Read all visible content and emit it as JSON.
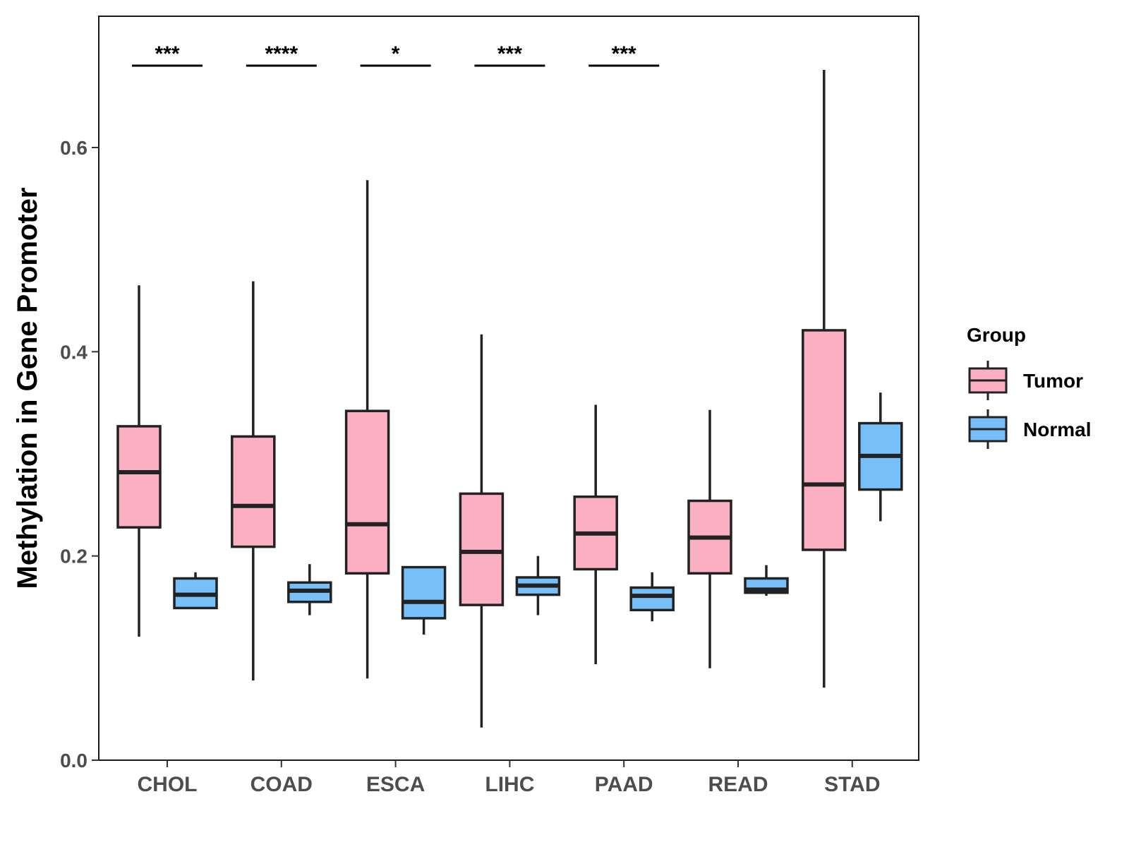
{
  "chart_data": {
    "type": "boxplot",
    "title": "",
    "xlabel": "",
    "ylabel": "Methylation in Gene Promoter",
    "ylim": [
      0.0,
      0.72
    ],
    "yticks": [
      "0.0",
      "0.2",
      "0.4",
      "0.6"
    ],
    "ytick_values": [
      0.0,
      0.2,
      0.4,
      0.6
    ],
    "grid": false,
    "legend": {
      "title": "Group",
      "position": "right",
      "entries": [
        {
          "name": "Tumor",
          "color": "#fbafc3"
        },
        {
          "name": "Normal",
          "color": "#77bff8"
        }
      ]
    },
    "categories": [
      "CHOL",
      "COAD",
      "ESCA",
      "LIHC",
      "PAAD",
      "READ",
      "STAD"
    ],
    "series": [
      {
        "name": "Tumor",
        "color": "#fbafc3",
        "boxes": [
          {
            "min": 0.121,
            "q1": 0.228,
            "median": 0.282,
            "q3": 0.327,
            "max": 0.465
          },
          {
            "min": 0.078,
            "q1": 0.209,
            "median": 0.249,
            "q3": 0.317,
            "max": 0.469
          },
          {
            "min": 0.08,
            "q1": 0.183,
            "median": 0.231,
            "q3": 0.342,
            "max": 0.568
          },
          {
            "min": 0.032,
            "q1": 0.152,
            "median": 0.204,
            "q3": 0.261,
            "max": 0.417
          },
          {
            "min": 0.094,
            "q1": 0.187,
            "median": 0.222,
            "q3": 0.258,
            "max": 0.348
          },
          {
            "min": 0.09,
            "q1": 0.183,
            "median": 0.218,
            "q3": 0.254,
            "max": 0.343
          },
          {
            "min": 0.071,
            "q1": 0.206,
            "median": 0.27,
            "q3": 0.421,
            "max": 0.676
          }
        ]
      },
      {
        "name": "Normal",
        "color": "#77bff8",
        "boxes": [
          {
            "min": 0.149,
            "q1": 0.149,
            "median": 0.162,
            "q3": 0.178,
            "max": 0.184
          },
          {
            "min": 0.142,
            "q1": 0.155,
            "median": 0.166,
            "q3": 0.174,
            "max": 0.192
          },
          {
            "min": 0.123,
            "q1": 0.139,
            "median": 0.155,
            "q3": 0.189,
            "max": 0.189
          },
          {
            "min": 0.142,
            "q1": 0.162,
            "median": 0.171,
            "q3": 0.179,
            "max": 0.2
          },
          {
            "min": 0.136,
            "q1": 0.147,
            "median": 0.161,
            "q3": 0.169,
            "max": 0.184
          },
          {
            "min": 0.161,
            "q1": 0.164,
            "median": 0.167,
            "q3": 0.178,
            "max": 0.191
          },
          {
            "min": 0.234,
            "q1": 0.265,
            "median": 0.298,
            "q3": 0.33,
            "max": 0.36
          }
        ]
      }
    ],
    "significance": [
      {
        "category": "CHOL",
        "label": "***",
        "y": 0.677
      },
      {
        "category": "COAD",
        "label": "****",
        "y": 0.677
      },
      {
        "category": "ESCA",
        "label": "*",
        "y": 0.677
      },
      {
        "category": "LIHC",
        "label": "***",
        "y": 0.677
      },
      {
        "category": "PAAD",
        "label": "***",
        "y": 0.677
      }
    ]
  }
}
